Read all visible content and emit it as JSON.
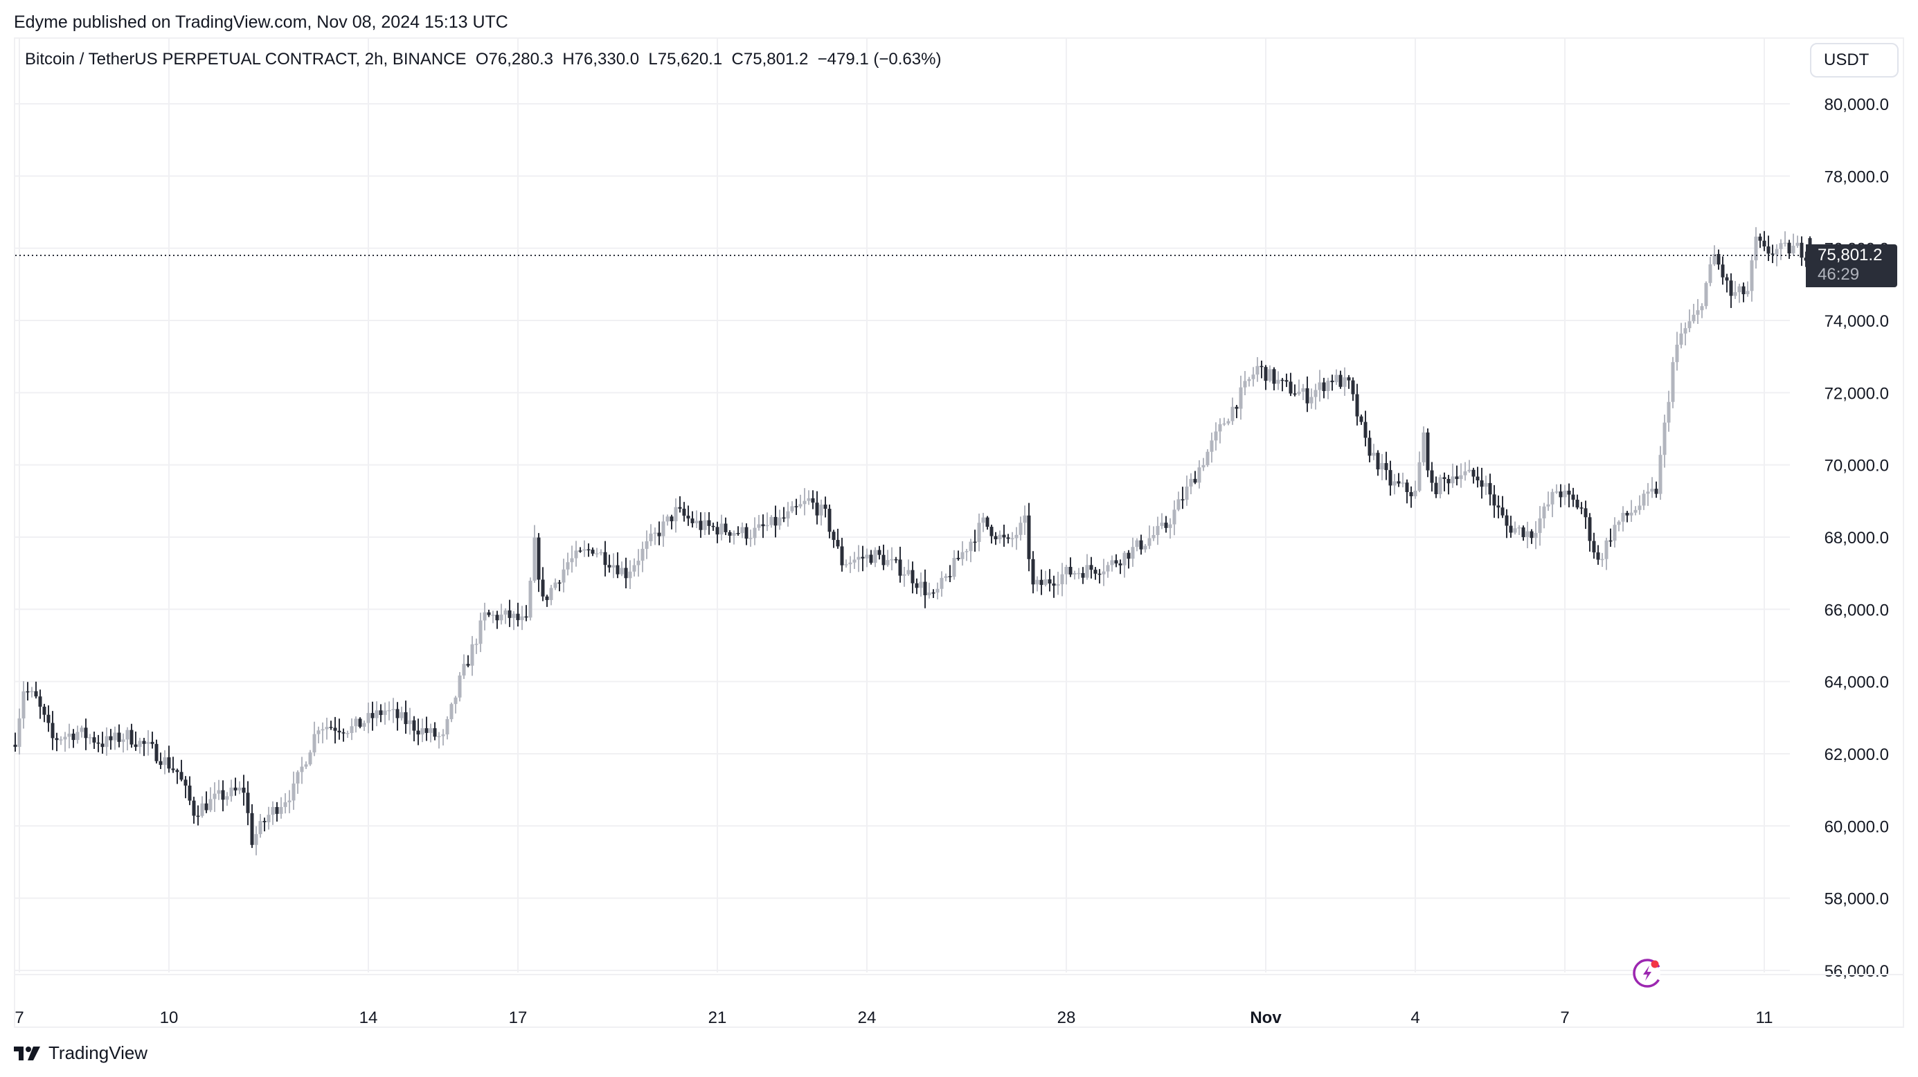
{
  "header": {
    "published": "Edyme published on TradingView.com, Nov 08, 2024 15:13 UTC"
  },
  "legend": {
    "symbol": "Bitcoin / TetherUS PERPETUAL CONTRACT, 2h, BINANCE",
    "open": "O76,280.3",
    "high": "H76,330.0",
    "low": "L75,620.1",
    "close": "C75,801.2",
    "change": "−479.1 (−0.63%)"
  },
  "currency_button": "USDT",
  "last_price": {
    "value": "75,801.2",
    "countdown": "46:29"
  },
  "footer": {
    "brand": "TradingView"
  },
  "icons": {
    "logo": "tradingview-logo-icon",
    "bolt": "lightning-bolt-icon"
  },
  "colors": {
    "up": "#b2b5be",
    "down": "#2a2e39",
    "grid": "#f0f0f3",
    "text": "#131722",
    "bolt": "#9c27b0",
    "bolt_dot": "#f23645"
  },
  "chart_data": {
    "type": "candlestick",
    "title": "Bitcoin / TetherUS PERPETUAL CONTRACT, 2h, BINANCE",
    "interval": "2h",
    "xlabel": "",
    "ylabel": "USDT",
    "ylim": [
      55000,
      81000
    ],
    "y_ticks": [
      "80,000.0",
      "78,000.0",
      "76,000.0",
      "74,000.0",
      "72,000.0",
      "70,000.0",
      "68,000.0",
      "66,000.0",
      "64,000.0",
      "62,000.0",
      "60,000.0",
      "58,000.0",
      "56,000.0"
    ],
    "y_tick_values": [
      80000,
      78000,
      76000,
      74000,
      72000,
      70000,
      68000,
      66000,
      64000,
      62000,
      60000,
      58000,
      56000
    ],
    "x_ticks": [
      {
        "label": "7",
        "day": 0,
        "bold": false
      },
      {
        "label": "10",
        "day": 3,
        "bold": false
      },
      {
        "label": "14",
        "day": 7,
        "bold": false
      },
      {
        "label": "17",
        "day": 10,
        "bold": false
      },
      {
        "label": "21",
        "day": 14,
        "bold": false
      },
      {
        "label": "24",
        "day": 17,
        "bold": false
      },
      {
        "label": "28",
        "day": 21,
        "bold": false
      },
      {
        "label": "Nov",
        "day": 25,
        "bold": true
      },
      {
        "label": "4",
        "day": 28,
        "bold": false
      },
      {
        "label": "7",
        "day": 31,
        "bold": false
      },
      {
        "label": "11",
        "day": 35,
        "bold": false
      }
    ],
    "grid": true,
    "last_close": 75801.2,
    "candle_colors": {
      "up": "#b2b5be",
      "down": "#2a2e39"
    },
    "price_path_keypoints": [
      {
        "t": -1,
        "p": 62400
      },
      {
        "t": 1,
        "p": 63800
      },
      {
        "t": 4,
        "p": 63500
      },
      {
        "t": 8,
        "p": 62400
      },
      {
        "t": 14,
        "p": 62600
      },
      {
        "t": 20,
        "p": 62300
      },
      {
        "t": 26,
        "p": 62500
      },
      {
        "t": 32,
        "p": 62100
      },
      {
        "t": 38,
        "p": 61500
      },
      {
        "t": 42,
        "p": 60400
      },
      {
        "t": 48,
        "p": 60800
      },
      {
        "t": 54,
        "p": 61000
      },
      {
        "t": 56,
        "p": 59600
      },
      {
        "t": 60,
        "p": 60300
      },
      {
        "t": 66,
        "p": 61000
      },
      {
        "t": 72,
        "p": 62800
      },
      {
        "t": 80,
        "p": 62700
      },
      {
        "t": 88,
        "p": 63200
      },
      {
        "t": 96,
        "p": 62700
      },
      {
        "t": 102,
        "p": 62400
      },
      {
        "t": 106,
        "p": 64000
      },
      {
        "t": 112,
        "p": 65800
      },
      {
        "t": 118,
        "p": 65800
      },
      {
        "t": 122,
        "p": 65600
      },
      {
        "t": 124,
        "p": 67800
      },
      {
        "t": 126,
        "p": 66200
      },
      {
        "t": 132,
        "p": 67300
      },
      {
        "t": 138,
        "p": 67700
      },
      {
        "t": 146,
        "p": 67000
      },
      {
        "t": 152,
        "p": 67900
      },
      {
        "t": 158,
        "p": 68700
      },
      {
        "t": 164,
        "p": 68300
      },
      {
        "t": 176,
        "p": 68100
      },
      {
        "t": 184,
        "p": 68500
      },
      {
        "t": 190,
        "p": 69000
      },
      {
        "t": 194,
        "p": 68600
      },
      {
        "t": 198,
        "p": 67300
      },
      {
        "t": 206,
        "p": 67500
      },
      {
        "t": 214,
        "p": 67000
      },
      {
        "t": 220,
        "p": 66300
      },
      {
        "t": 226,
        "p": 67400
      },
      {
        "t": 232,
        "p": 68400
      },
      {
        "t": 238,
        "p": 67800
      },
      {
        "t": 242,
        "p": 68400
      },
      {
        "t": 244,
        "p": 66600
      },
      {
        "t": 252,
        "p": 67000
      },
      {
        "t": 262,
        "p": 67200
      },
      {
        "t": 270,
        "p": 67800
      },
      {
        "t": 276,
        "p": 68300
      },
      {
        "t": 282,
        "p": 69500
      },
      {
        "t": 290,
        "p": 71200
      },
      {
        "t": 298,
        "p": 72700
      },
      {
        "t": 304,
        "p": 72200
      },
      {
        "t": 310,
        "p": 71900
      },
      {
        "t": 316,
        "p": 72400
      },
      {
        "t": 320,
        "p": 72200
      },
      {
        "t": 324,
        "p": 70600
      },
      {
        "t": 330,
        "p": 69500
      },
      {
        "t": 336,
        "p": 69200
      },
      {
        "t": 338,
        "p": 70800
      },
      {
        "t": 340,
        "p": 69300
      },
      {
        "t": 346,
        "p": 69800
      },
      {
        "t": 352,
        "p": 69600
      },
      {
        "t": 358,
        "p": 68300
      },
      {
        "t": 364,
        "p": 68100
      },
      {
        "t": 370,
        "p": 69300
      },
      {
        "t": 376,
        "p": 68800
      },
      {
        "t": 380,
        "p": 67300
      },
      {
        "t": 384,
        "p": 68300
      },
      {
        "t": 390,
        "p": 68900
      },
      {
        "t": 394,
        "p": 69300
      },
      {
        "t": 398,
        "p": 72800
      },
      {
        "t": 400,
        "p": 73600
      },
      {
        "t": 404,
        "p": 74200
      },
      {
        "t": 408,
        "p": 75800
      },
      {
        "t": 412,
        "p": 74700
      },
      {
        "t": 416,
        "p": 74800
      },
      {
        "t": 418,
        "p": 76200
      },
      {
        "t": 420,
        "p": 75900
      },
      {
        "t": 428,
        "p": 76000
      },
      {
        "t": 431,
        "p": 75801.2
      }
    ]
  }
}
